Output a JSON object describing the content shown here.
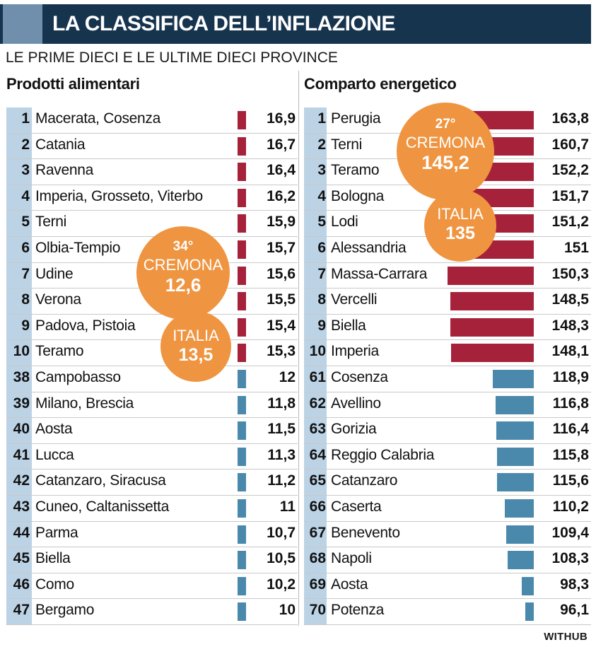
{
  "header": {
    "title": "LA CLASSIFICA DELL’INFLAZIONE"
  },
  "subtitle": "LE PRIME DIECI E LE ULTIME DIECI PROVINCE",
  "colors": {
    "top": "#a6223a",
    "bottom": "#4a89ab",
    "strip": "#bcd3e6",
    "bubble": "#ef9541",
    "header": "#17344f"
  },
  "chart_data": [
    {
      "type": "bar",
      "title": "Prodotti alimentari",
      "rows": [
        {
          "rank": "1",
          "name": "Macerata, Cosenza",
          "value": 16.9,
          "label": "16,9",
          "group": "top"
        },
        {
          "rank": "2",
          "name": "Catania",
          "value": 16.7,
          "label": "16,7",
          "group": "top"
        },
        {
          "rank": "3",
          "name": "Ravenna",
          "value": 16.4,
          "label": "16,4",
          "group": "top"
        },
        {
          "rank": "4",
          "name": "Imperia, Grosseto, Viterbo",
          "value": 16.2,
          "label": "16,2",
          "group": "top"
        },
        {
          "rank": "5",
          "name": "Terni",
          "value": 15.9,
          "label": "15,9",
          "group": "top"
        },
        {
          "rank": "6",
          "name": "Olbia-Tempio",
          "value": 15.7,
          "label": "15,7",
          "group": "top"
        },
        {
          "rank": "7",
          "name": "Udine",
          "value": 15.6,
          "label": "15,6",
          "group": "top"
        },
        {
          "rank": "8",
          "name": "Verona",
          "value": 15.5,
          "label": "15,5",
          "group": "top"
        },
        {
          "rank": "9",
          "name": "Padova, Pistoia",
          "value": 15.4,
          "label": "15,4",
          "group": "top"
        },
        {
          "rank": "10",
          "name": "Teramo",
          "value": 15.3,
          "label": "15,3",
          "group": "top"
        },
        {
          "rank": "38",
          "name": "Campobasso",
          "value": 12,
          "label": "12",
          "group": "bottom"
        },
        {
          "rank": "39",
          "name": "Milano, Brescia",
          "value": 11.8,
          "label": "11,8",
          "group": "bottom"
        },
        {
          "rank": "40",
          "name": "Aosta",
          "value": 11.5,
          "label": "11,5",
          "group": "bottom"
        },
        {
          "rank": "41",
          "name": "Lucca",
          "value": 11.3,
          "label": "11,3",
          "group": "bottom"
        },
        {
          "rank": "42",
          "name": "Catanzaro, Siracusa",
          "value": 11.2,
          "label": "11,2",
          "group": "bottom"
        },
        {
          "rank": "43",
          "name": "Cuneo, Caltanissetta",
          "value": 11,
          "label": "11",
          "group": "bottom"
        },
        {
          "rank": "44",
          "name": "Parma",
          "value": 10.7,
          "label": "10,7",
          "group": "bottom"
        },
        {
          "rank": "45",
          "name": "Biella",
          "value": 10.5,
          "label": "10,5",
          "group": "bottom"
        },
        {
          "rank": "46",
          "name": "Como",
          "value": 10.2,
          "label": "10,2",
          "group": "bottom"
        },
        {
          "rank": "47",
          "name": "Bergamo",
          "value": 10,
          "label": "10",
          "group": "bottom"
        }
      ],
      "highlights": [
        {
          "rank": "34°",
          "name": "CREMONA",
          "value": "12,6"
        },
        {
          "name": "ITALIA",
          "value": "13,5"
        }
      ]
    },
    {
      "type": "bar",
      "title": "Comparto energetico",
      "rows": [
        {
          "rank": "1",
          "name": "Perugia",
          "value": 163.8,
          "label": "163,8",
          "group": "top"
        },
        {
          "rank": "2",
          "name": "Terni",
          "value": 160.7,
          "label": "160,7",
          "group": "top"
        },
        {
          "rank": "3",
          "name": "Teramo",
          "value": 152.2,
          "label": "152,2",
          "group": "top"
        },
        {
          "rank": "4",
          "name": "Bologna",
          "value": 151.7,
          "label": "151,7",
          "group": "top"
        },
        {
          "rank": "5",
          "name": "Lodi",
          "value": 151.2,
          "label": "151,2",
          "group": "top"
        },
        {
          "rank": "6",
          "name": "Alessandria",
          "value": 151,
          "label": "151",
          "group": "top"
        },
        {
          "rank": "7",
          "name": "Massa-Carrara",
          "value": 150.3,
          "label": "150,3",
          "group": "top"
        },
        {
          "rank": "8",
          "name": "Vercelli",
          "value": 148.5,
          "label": "148,5",
          "group": "top"
        },
        {
          "rank": "9",
          "name": "Biella",
          "value": 148.3,
          "label": "148,3",
          "group": "top"
        },
        {
          "rank": "10",
          "name": "Imperia",
          "value": 148.1,
          "label": "148,1",
          "group": "top"
        },
        {
          "rank": "61",
          "name": "Cosenza",
          "value": 118.9,
          "label": "118,9",
          "group": "bottom"
        },
        {
          "rank": "62",
          "name": "Avellino",
          "value": 116.8,
          "label": "116,8",
          "group": "bottom"
        },
        {
          "rank": "63",
          "name": "Gorizia",
          "value": 116.4,
          "label": "116,4",
          "group": "bottom"
        },
        {
          "rank": "64",
          "name": "Reggio Calabria",
          "value": 115.8,
          "label": "115,8",
          "group": "bottom"
        },
        {
          "rank": "65",
          "name": "Catanzaro",
          "value": 115.6,
          "label": "115,6",
          "group": "bottom"
        },
        {
          "rank": "66",
          "name": "Caserta",
          "value": 110.2,
          "label": "110,2",
          "group": "bottom"
        },
        {
          "rank": "67",
          "name": "Benevento",
          "value": 109.4,
          "label": "109,4",
          "group": "bottom"
        },
        {
          "rank": "68",
          "name": "Napoli",
          "value": 108.3,
          "label": "108,3",
          "group": "bottom"
        },
        {
          "rank": "69",
          "name": "Aosta",
          "value": 98.3,
          "label": "98,3",
          "group": "bottom"
        },
        {
          "rank": "70",
          "name": "Potenza",
          "value": 96.1,
          "label": "96,1",
          "group": "bottom"
        }
      ],
      "highlights": [
        {
          "rank": "27°",
          "name": "CREMONA",
          "value": "145,2"
        },
        {
          "name": "ITALIA",
          "value": "135"
        }
      ]
    }
  ],
  "credit": "WITHUB"
}
